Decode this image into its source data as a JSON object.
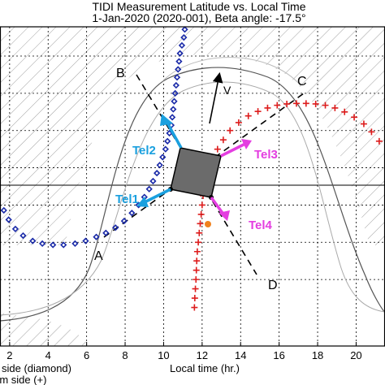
{
  "chart_data": {
    "type": "scatter",
    "title": "TIDI Measurement Latitude vs. Local Time",
    "subtitle": "1-Jan-2020 (2020-001),   Beta angle: -17.5°",
    "xlabel": "Local time (hr.)",
    "xlim": [
      1.5,
      21.5
    ],
    "ylim": [
      -1,
      11
    ],
    "x_ticks": [
      2,
      4,
      6,
      8,
      10,
      12,
      14,
      16,
      18,
      20
    ],
    "legend": [
      "side (diamond)",
      "rm side (+)"
    ],
    "series": [
      {
        "marker": "diamond",
        "color": "#1a2aa8",
        "x": [
          11.1,
          11.05,
          10.95,
          10.85,
          10.8,
          10.75,
          10.7,
          10.65,
          10.6,
          10.55,
          10.5,
          10.45,
          10.4,
          10.3,
          10.2,
          10.1,
          9.95,
          9.8,
          9.65,
          9.45,
          9.25,
          9.0,
          8.7,
          8.35,
          7.95,
          7.5,
          7.0,
          6.5,
          5.95,
          5.4,
          4.8,
          4.25,
          3.7,
          3.2,
          2.7,
          2.3,
          1.95,
          1.7
        ],
        "y": [
          10.9,
          10.6,
          10.3,
          10.0,
          9.7,
          9.4,
          9.1,
          8.8,
          8.5,
          8.2,
          7.9,
          7.6,
          7.3,
          7.0,
          6.7,
          6.4,
          6.1,
          5.8,
          5.5,
          5.2,
          4.9,
          4.6,
          4.3,
          4.0,
          3.7,
          3.45,
          3.25,
          3.1,
          2.95,
          2.85,
          2.8,
          2.8,
          2.85,
          2.95,
          3.15,
          3.4,
          3.75,
          4.1
        ]
      },
      {
        "marker": "plus",
        "color": "#dd1c1c",
        "x": [
          21.2,
          20.8,
          20.4,
          19.9,
          19.4,
          18.9,
          18.4,
          17.9,
          17.4,
          16.9,
          16.4,
          15.9,
          15.4,
          14.9,
          14.4,
          13.9,
          13.45,
          13.1,
          12.8,
          12.55,
          12.35,
          12.2,
          12.1,
          12.05,
          12.0,
          11.95,
          11.9,
          11.85,
          11.8,
          11.75,
          11.72,
          11.7,
          11.68,
          11.65,
          11.62,
          11.6
        ],
        "y": [
          6.7,
          7.05,
          7.35,
          7.6,
          7.8,
          7.95,
          8.05,
          8.1,
          8.12,
          8.12,
          8.1,
          8.05,
          7.95,
          7.82,
          7.65,
          7.4,
          7.1,
          6.75,
          6.4,
          6.05,
          5.7,
          5.35,
          5.0,
          4.65,
          4.3,
          3.95,
          3.6,
          3.25,
          2.9,
          2.55,
          2.2,
          1.85,
          1.5,
          1.15,
          0.8,
          0.45
        ]
      }
    ],
    "annotations": {
      "point_labels": [
        "A",
        "B",
        "C",
        "D",
        "V"
      ],
      "telescopes": [
        "Tel1",
        "Tel2",
        "Tel3",
        "Tel4"
      ]
    },
    "colors": {
      "tel_blue": "#1aa0df",
      "tel_magenta": "#e43ee0",
      "spacecraft": "#6b6b6b",
      "orange": "#f0821e"
    }
  }
}
